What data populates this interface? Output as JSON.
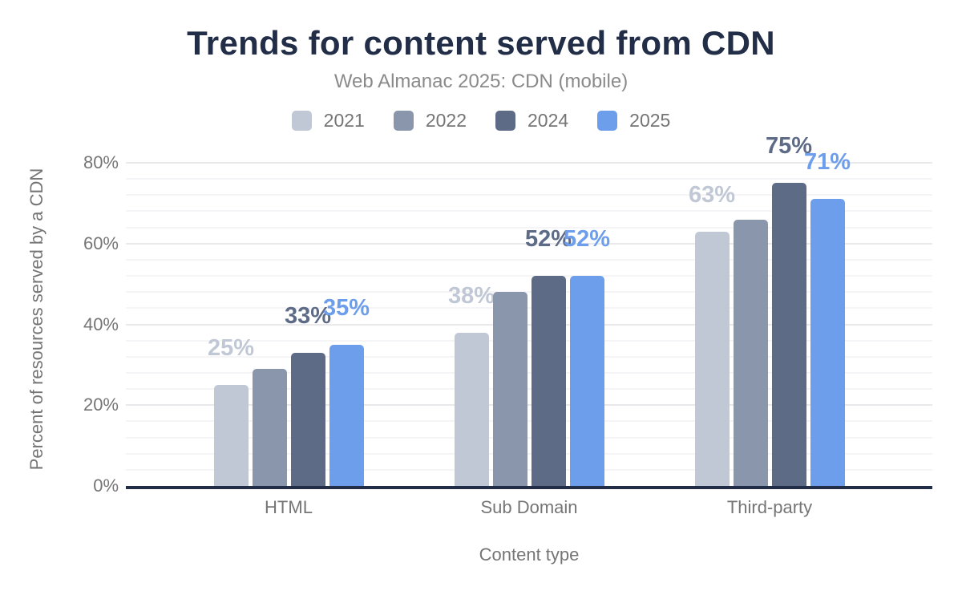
{
  "chart_data": {
    "type": "bar",
    "title": "Trends for content served from CDN",
    "subtitle": "Web Almanac 2025: CDN (mobile)",
    "xlabel": "Content type",
    "ylabel": "Percent of resources served by a CDN",
    "categories": [
      "HTML",
      "Sub Domain",
      "Third-party"
    ],
    "series": [
      {
        "name": "2021",
        "color": "#c1c8d5",
        "values": [
          25,
          38,
          63
        ],
        "labels": [
          "25%",
          "38%",
          "63%"
        ]
      },
      {
        "name": "2022",
        "color": "#8a96ac",
        "values": [
          29,
          48,
          66
        ],
        "labels": [
          null,
          null,
          null
        ]
      },
      {
        "name": "2024",
        "color": "#5d6b87",
        "values": [
          33,
          52,
          75
        ],
        "labels": [
          "33%",
          "52%",
          "75%"
        ]
      },
      {
        "name": "2025",
        "color": "#6d9eeb",
        "values": [
          35,
          52,
          71
        ],
        "labels": [
          "35%",
          "52%",
          "71%"
        ]
      }
    ],
    "yticks": [
      "0%",
      "20%",
      "40%",
      "60%",
      "80%"
    ],
    "ytick_values": [
      0,
      20,
      40,
      60,
      80
    ],
    "ylim": [
      0,
      80
    ],
    "grid": {
      "minor_step_pct": 4,
      "major_step_pct": 20,
      "grid_on": true
    },
    "legend_position": "top",
    "colors": {
      "title": "#222e47",
      "subtitle": "#8a8a8a",
      "axis_text": "#757575",
      "baseline": "#222e47"
    }
  }
}
